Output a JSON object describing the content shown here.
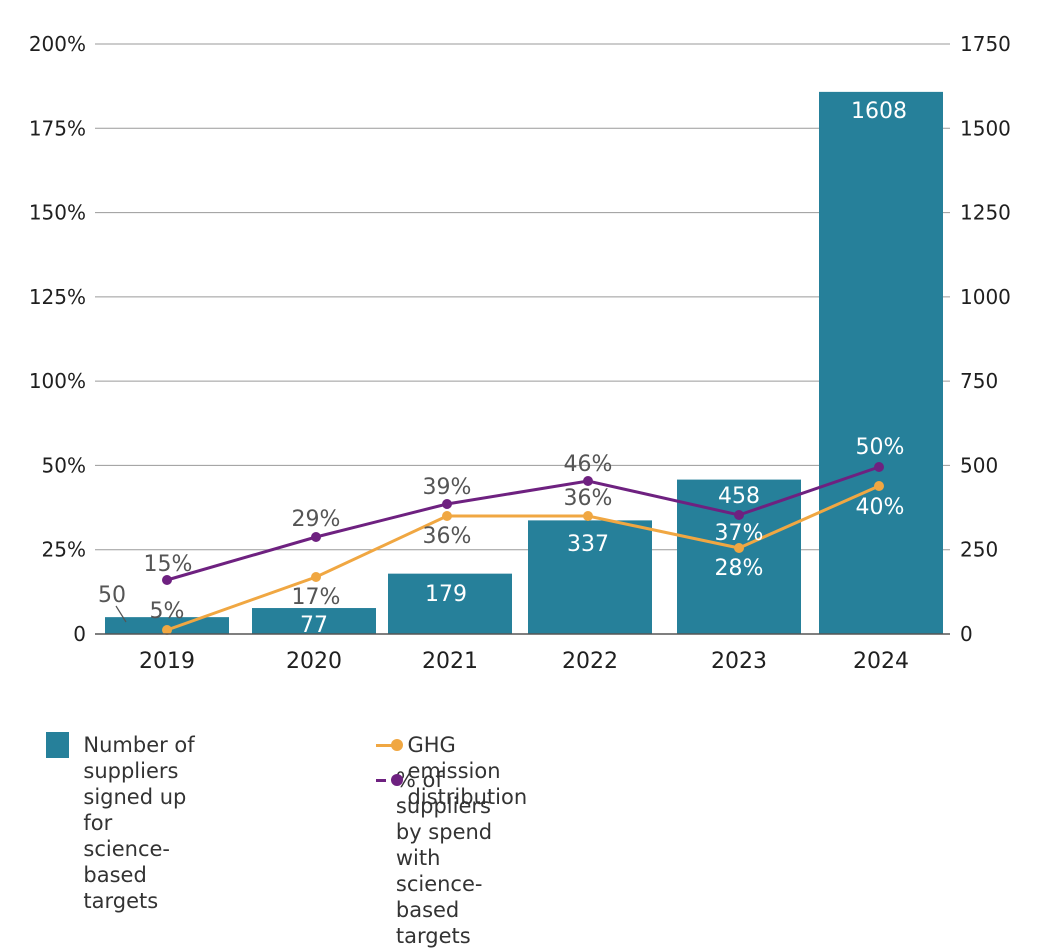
{
  "chart_data": {
    "type": "bar+line",
    "categories": [
      "2019",
      "2020",
      "2021",
      "2022",
      "2023",
      "2024"
    ],
    "bar_series": {
      "name": "Number of suppliers signed up for science-based targets",
      "values": [
        50,
        77,
        179,
        337,
        458,
        1608
      ],
      "labels": [
        "50",
        "77",
        "179",
        "337",
        "458",
        "1608"
      ],
      "color": "#26809A",
      "axis": "right"
    },
    "line_series": [
      {
        "name": "GHG emission distribution",
        "values": [
          5,
          17,
          36,
          36,
          28,
          40
        ],
        "labels": [
          "5%",
          "17%",
          "36%",
          "36%",
          "28%",
          "40%"
        ],
        "color": "#F0A742",
        "axis": "left"
      },
      {
        "name": "% of suppliers by spend with science-based targets",
        "values": [
          15,
          29,
          39,
          46,
          37,
          50
        ],
        "labels": [
          "15%",
          "29%",
          "39%",
          "46%",
          "37%",
          "50%"
        ],
        "color": "#6E2180",
        "axis": "left"
      }
    ],
    "left_axis": {
      "ticks": [
        "200%",
        "175%",
        "150%",
        "125%",
        "100%",
        "50%",
        "25%",
        "0"
      ]
    },
    "right_axis": {
      "min": 0,
      "max": 1750,
      "ticks": [
        "1750",
        "1500",
        "1250",
        "1000",
        "750",
        "500",
        "250",
        "0"
      ]
    },
    "grid": true,
    "legend_position": "bottom"
  },
  "legend": {
    "bar_label_lines": [
      "Number of suppliers",
      "signed up for",
      "science-based targets"
    ],
    "ghg_label": "GHG emission distribution",
    "spend_label": "% of suppliers by spend with science-based targets"
  }
}
